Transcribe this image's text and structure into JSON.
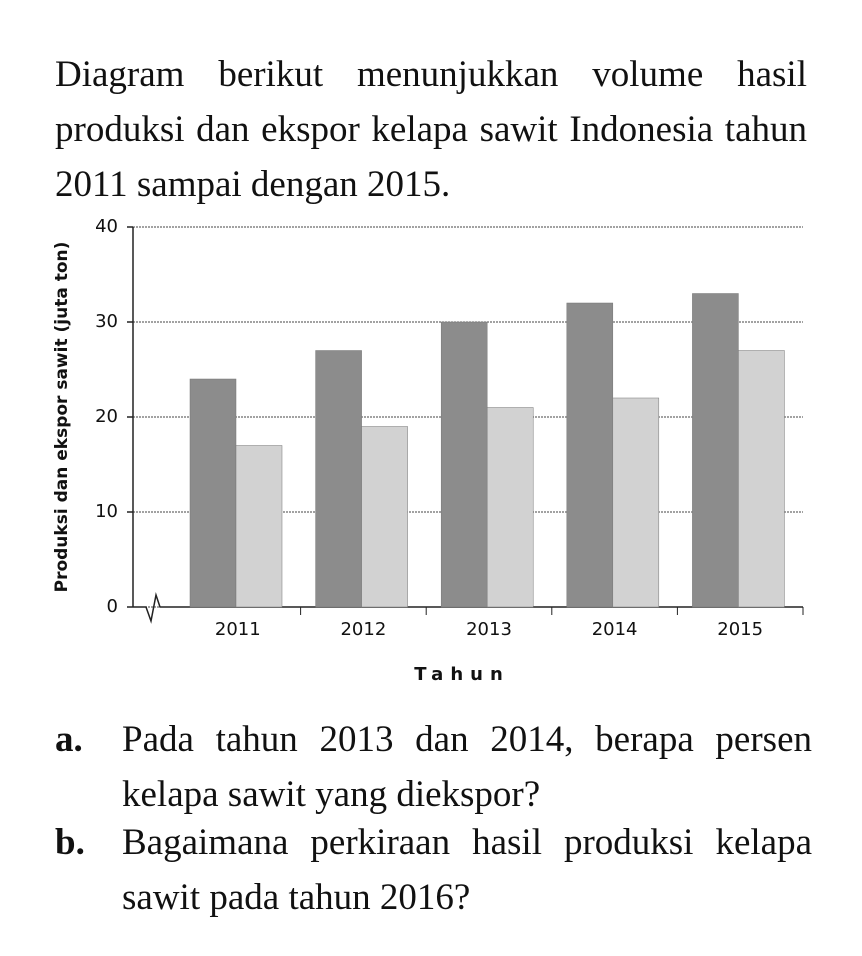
{
  "intro": "Diagram berikut menunjukkan volume hasil produksi dan ekspor kelapa sawit Indonesia tahun 2011 sampai dengan 2015.",
  "chart_data": {
    "type": "bar",
    "y_label": "Produksi dan ekspor sawit (juta ton)",
    "x_label": "Tahun",
    "categories": [
      "2011",
      "2012",
      "2013",
      "2014",
      "2015"
    ],
    "series": [
      {
        "color": "#8c8c8c",
        "values": [
          24,
          27,
          30,
          32,
          33
        ]
      },
      {
        "color": "#d2d2d2",
        "values": [
          17,
          19,
          21,
          22,
          27
        ]
      }
    ],
    "ylim": [
      0,
      40
    ],
    "yticks": [
      0,
      10,
      20,
      30,
      40
    ],
    "grid": true
  },
  "questions": [
    {
      "label": "a.",
      "text": "Pada tahun 2013 dan 2014, berapa persen kelapa sawit yang diekspor?"
    },
    {
      "label": "b.",
      "text": "Bagaimana perkiraan hasil produksi kelapa sawit pada tahun 2016?"
    }
  ]
}
